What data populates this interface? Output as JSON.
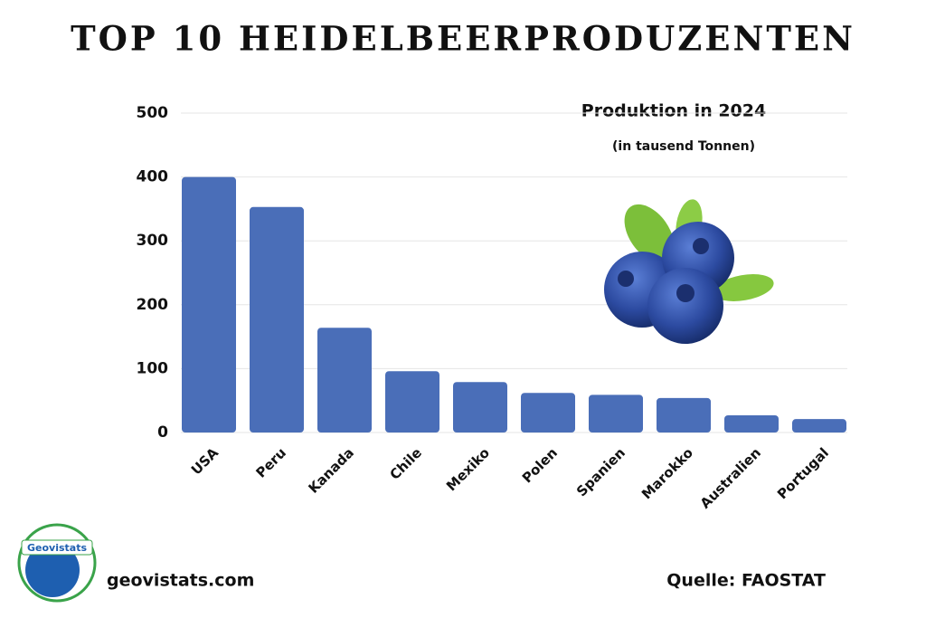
{
  "chart_data": {
    "type": "bar",
    "title": "TOP 10 HEIDELBEERPRODUZENTEN",
    "subtitle": "Produktion in 2024",
    "unit_note": "(in tausend Tonnen)",
    "categories": [
      "USA",
      "Peru",
      "Kanada",
      "Chile",
      "Mexiko",
      "Polen",
      "Spanien",
      "Marokko",
      "Australien",
      "Portugal"
    ],
    "values": [
      400,
      353,
      164,
      96,
      79,
      62,
      59,
      54,
      27,
      21
    ],
    "color": "#4a6eb8",
    "ylim": [
      0,
      500
    ],
    "yticks": [
      0,
      100,
      200,
      300,
      400,
      500
    ],
    "grid": true
  },
  "footer": {
    "website": "geovistats.com",
    "source": "Quelle: FAOSTAT",
    "logo": "Geovistats"
  }
}
